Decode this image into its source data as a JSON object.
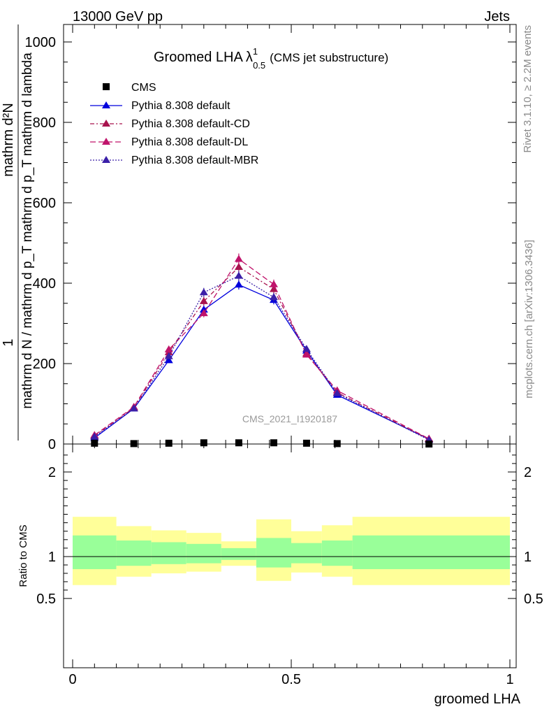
{
  "header": {
    "left": "13000 GeV pp",
    "right": "Jets"
  },
  "title": {
    "main": "Groomed LHA",
    "lambda": "λ",
    "sup": "1",
    "sub": "0.5",
    "note": "(CMS jet substructure)"
  },
  "right_labels": {
    "rivet": "Rivet 3.1.10, ≥ 2.2M events",
    "mcplots": "mcplots.cern.ch [arXiv:1306.3436]"
  },
  "watermark": "CMS_2021_I1920187",
  "ylabel_main": {
    "one": "1",
    "numerator": "mathrm d²N",
    "denominator": "mathrm d N / mathrm d p_T mathrm d p_T mathrm d lambda"
  },
  "ylabel_ratio": "Ratio to CMS",
  "xlabel": "groomed LHA",
  "colors": {
    "cms": "#000000",
    "default": "#0000dd",
    "cd": "#a8134e",
    "dl": "#c0136b",
    "mbr": "#3b1fa8",
    "band_yellow": "#ffff99",
    "band_green": "#99ff99"
  },
  "chart_data": {
    "type": "line",
    "x": [
      0.05,
      0.14,
      0.22,
      0.3,
      0.38,
      0.46,
      0.535,
      0.605,
      0.815
    ],
    "bin_edges": [
      0.0,
      0.1,
      0.18,
      0.26,
      0.34,
      0.42,
      0.5,
      0.57,
      0.64,
      1.0
    ],
    "main": {
      "xlim": [
        0,
        1
      ],
      "ylim": [
        0,
        1000
      ],
      "xticks": [
        0,
        0.5,
        1
      ],
      "yticks": [
        0,
        200,
        400,
        600,
        800,
        1000
      ],
      "xtick_labels": [
        "0",
        "0.5",
        "1"
      ],
      "ytick_labels": [
        "0",
        "200",
        "400",
        "600",
        "800",
        "1000"
      ]
    },
    "series": [
      {
        "name": "CMS",
        "values": [
          2,
          1,
          2,
          3,
          3,
          3,
          2,
          1,
          0
        ]
      },
      {
        "name": "Pythia 8.308 default",
        "values": [
          15,
          88,
          208,
          334,
          396,
          358,
          232,
          122,
          12
        ]
      },
      {
        "name": "Pythia 8.308 default-CD",
        "values": [
          20,
          90,
          228,
          355,
          440,
          385,
          225,
          128,
          12
        ]
      },
      {
        "name": "Pythia 8.308 default-DL",
        "values": [
          22,
          92,
          235,
          325,
          460,
          397,
          222,
          133,
          13
        ]
      },
      {
        "name": "Pythia 8.308 default-MBR",
        "values": [
          18,
          88,
          218,
          377,
          418,
          365,
          236,
          126,
          10
        ]
      }
    ],
    "ratio": {
      "ylim": [
        0.4,
        2.3
      ],
      "yticks": [
        0.5,
        1,
        2
      ],
      "ytick_labels": [
        "0.5",
        "1",
        "2"
      ],
      "band_yellow_lo": [
        0.66,
        0.76,
        0.8,
        0.82,
        0.89,
        0.71,
        0.81,
        0.76,
        0.66
      ],
      "band_yellow_hi": [
        1.47,
        1.36,
        1.31,
        1.28,
        1.18,
        1.44,
        1.3,
        1.37,
        1.47
      ],
      "band_green_lo": [
        0.85,
        0.89,
        0.91,
        0.92,
        0.96,
        0.87,
        0.92,
        0.89,
        0.85
      ],
      "band_green_hi": [
        1.25,
        1.19,
        1.17,
        1.15,
        1.1,
        1.22,
        1.16,
        1.19,
        1.25
      ]
    }
  }
}
